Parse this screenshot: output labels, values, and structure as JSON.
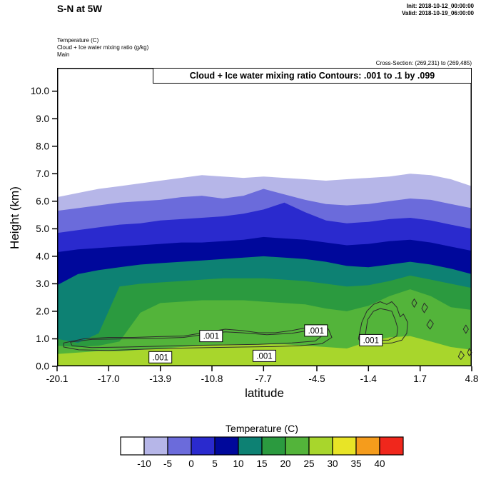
{
  "header": {
    "title": "S-N at 5W",
    "init": "Init: 2018-10-12_00:00:00",
    "valid": "Valid: 2018-10-19_06:00:00",
    "fields": [
      "Temperature  (C)",
      "Cloud + Ice water mixing ratio   (g/kg)",
      "Main"
    ],
    "cross_section": "Cross-Section: (269,231) to (269,485)"
  },
  "chart_data": {
    "type": "area",
    "subtype": "filled_contour_cross_section",
    "title": "Cloud + Ice water mixing ratio Contours: .001 to .1 by .099",
    "xlabel": "latitude",
    "ylabel": "Height (km)",
    "fill_field": "Temperature (C)",
    "xlim": [
      -20.1,
      4.8
    ],
    "ylim": [
      0,
      10.85
    ],
    "background_fill": "#ffffff",
    "x_ticks": {
      "values": [
        -20.1,
        -17.0,
        -13.9,
        -10.8,
        -7.7,
        -4.5,
        -1.4,
        1.7,
        4.8
      ],
      "labels": [
        "-20.1",
        "-17.0",
        "-13.9",
        "-10.8",
        "-7.7",
        "-4.5",
        "-1.4",
        "1.7",
        "4.8"
      ]
    },
    "y_ticks": {
      "values": [
        0,
        1,
        2,
        3,
        4,
        5,
        6,
        7,
        8,
        9,
        10
      ],
      "labels": [
        "0.0",
        "1.0",
        "2.0",
        "3.0",
        "4.0",
        "5.0",
        "6.0",
        "7.0",
        "8.0",
        "9.0",
        "10.0"
      ]
    },
    "x_samples": [
      -20.1,
      -18.85,
      -17.6,
      -16.35,
      -15.1,
      -13.9,
      -12.65,
      -11.4,
      -10.15,
      -8.9,
      -7.7,
      -6.45,
      -5.2,
      -3.95,
      -2.7,
      -1.4,
      -0.15,
      1.1,
      2.35,
      3.55,
      4.8
    ],
    "temp_bands": [
      {
        "label": "-10 to -5",
        "color": "#b6b6e8",
        "top_km": [
          6.15,
          6.3,
          6.45,
          6.55,
          6.65,
          6.75,
          6.85,
          6.95,
          6.9,
          6.85,
          6.9,
          6.85,
          6.8,
          6.75,
          6.8,
          6.85,
          6.9,
          7.0,
          6.95,
          6.8,
          6.55
        ]
      },
      {
        "label": "-5 to 0",
        "color": "#6b6bdb",
        "top_km": [
          5.65,
          5.75,
          5.85,
          5.95,
          6.0,
          6.05,
          6.15,
          6.2,
          6.1,
          6.2,
          6.45,
          6.25,
          6.05,
          5.9,
          5.85,
          5.9,
          6.0,
          6.1,
          6.05,
          5.9,
          5.75
        ]
      },
      {
        "label": "0 to 5",
        "color": "#2a2ace",
        "top_km": [
          4.85,
          4.95,
          5.05,
          5.15,
          5.2,
          5.3,
          5.35,
          5.4,
          5.45,
          5.55,
          5.7,
          5.95,
          5.6,
          5.3,
          5.2,
          5.25,
          5.35,
          5.4,
          5.3,
          5.15,
          5.0
        ]
      },
      {
        "label": "5 to 10",
        "color": "#00089b",
        "top_km": [
          4.15,
          4.25,
          4.3,
          4.35,
          4.4,
          4.45,
          4.5,
          4.5,
          4.55,
          4.6,
          4.7,
          4.65,
          4.6,
          4.5,
          4.4,
          4.45,
          4.55,
          4.6,
          4.5,
          4.35,
          4.2
        ]
      },
      {
        "label": "10 to 15",
        "color": "#0d8173",
        "top_km": [
          2.95,
          3.35,
          3.5,
          3.6,
          3.7,
          3.75,
          3.8,
          3.85,
          3.9,
          3.95,
          4.0,
          3.95,
          3.9,
          3.8,
          3.65,
          3.6,
          3.7,
          3.8,
          3.7,
          3.55,
          3.35
        ]
      },
      {
        "label": "15 to 20",
        "color": "#2b9a3f",
        "top_km": [
          1.0,
          0.85,
          1.2,
          2.9,
          3.0,
          3.05,
          3.1,
          3.15,
          3.2,
          3.2,
          3.2,
          3.15,
          3.1,
          3.0,
          2.9,
          2.95,
          3.1,
          3.3,
          3.15,
          3.0,
          2.85
        ]
      },
      {
        "label": "20 to 25",
        "color": "#53b43a",
        "top_km": [
          0.75,
          0.7,
          0.75,
          0.9,
          1.95,
          2.3,
          2.35,
          2.4,
          2.4,
          2.4,
          2.35,
          2.3,
          2.25,
          2.1,
          2.0,
          2.2,
          2.55,
          2.8,
          2.55,
          2.15,
          2.05
        ]
      },
      {
        "label": "25 to 30",
        "color": "#a8d62c",
        "top_km": [
          0.45,
          0.5,
          0.55,
          0.55,
          0.6,
          0.65,
          0.7,
          0.75,
          0.8,
          0.8,
          0.8,
          0.8,
          0.75,
          0.7,
          0.65,
          0.9,
          1.05,
          1.1,
          0.9,
          0.7,
          0.6
        ]
      }
    ],
    "cloud_contours": {
      "values": [
        0.001,
        0.1
      ],
      "color": "#2b2b2b",
      "polylines": [
        {
          "closed": true,
          "points": [
            [
              -19.7,
              0.85
            ],
            [
              -18.5,
              1.0
            ],
            [
              -17,
              1.05
            ],
            [
              -15.5,
              1.05
            ],
            [
              -14,
              1.08
            ],
            [
              -12.5,
              1.1
            ],
            [
              -11,
              1.25
            ],
            [
              -10,
              1.35
            ],
            [
              -9,
              1.3
            ],
            [
              -8,
              1.22
            ],
            [
              -7,
              1.22
            ],
            [
              -6,
              1.3
            ],
            [
              -5,
              1.42
            ],
            [
              -4.3,
              1.5
            ],
            [
              -3.8,
              1.35
            ],
            [
              -3.6,
              1.05
            ],
            [
              -4.2,
              0.82
            ],
            [
              -5.5,
              0.75
            ],
            [
              -7,
              0.72
            ],
            [
              -9,
              0.7
            ],
            [
              -11,
              0.68
            ],
            [
              -13,
              0.66
            ],
            [
              -15,
              0.62
            ],
            [
              -17,
              0.58
            ],
            [
              -18.8,
              0.6
            ],
            [
              -19.7,
              0.7
            ]
          ]
        },
        {
          "closed": true,
          "points": [
            [
              -19.3,
              0.88
            ],
            [
              -18,
              0.98
            ],
            [
              -16,
              1.0
            ],
            [
              -14,
              1.02
            ],
            [
              -12.5,
              1.05
            ],
            [
              -11,
              1.18
            ],
            [
              -10,
              1.25
            ],
            [
              -9,
              1.22
            ],
            [
              -7.5,
              1.15
            ],
            [
              -6,
              1.2
            ],
            [
              -5,
              1.3
            ],
            [
              -4.4,
              1.35
            ],
            [
              -4.1,
              1.15
            ],
            [
              -4.6,
              0.92
            ],
            [
              -6,
              0.85
            ],
            [
              -8,
              0.8
            ],
            [
              -10,
              0.78
            ],
            [
              -12,
              0.76
            ],
            [
              -14,
              0.73
            ],
            [
              -16,
              0.7
            ],
            [
              -18,
              0.68
            ],
            [
              -19.2,
              0.75
            ]
          ]
        },
        {
          "closed": true,
          "points": [
            [
              -2.0,
              1.0
            ],
            [
              -1.8,
              1.6
            ],
            [
              -1.5,
              2.0
            ],
            [
              -1.1,
              2.25
            ],
            [
              -0.7,
              2.35
            ],
            [
              -0.3,
              2.25
            ],
            [
              0.0,
              2.35
            ],
            [
              0.3,
              2.15
            ],
            [
              0.5,
              1.8
            ],
            [
              0.7,
              1.9
            ],
            [
              0.95,
              1.6
            ],
            [
              0.9,
              1.2
            ],
            [
              0.6,
              0.95
            ],
            [
              0.0,
              0.85
            ],
            [
              -0.8,
              0.82
            ],
            [
              -1.5,
              0.85
            ],
            [
              -1.9,
              0.9
            ]
          ]
        },
        {
          "closed": true,
          "points": [
            [
              -1.6,
              1.1
            ],
            [
              -1.45,
              1.7
            ],
            [
              -1.1,
              2.0
            ],
            [
              -0.7,
              2.1
            ],
            [
              -0.3,
              2.05
            ],
            [
              0.0,
              2.0
            ],
            [
              0.2,
              1.7
            ],
            [
              0.35,
              1.4
            ],
            [
              0.3,
              1.1
            ],
            [
              -0.2,
              0.95
            ],
            [
              -0.9,
              0.95
            ],
            [
              -1.4,
              0.98
            ]
          ]
        },
        {
          "closed": true,
          "points": [
            [
              1.2,
              2.3
            ],
            [
              1.35,
              2.45
            ],
            [
              1.5,
              2.3
            ],
            [
              1.35,
              2.15
            ]
          ]
        },
        {
          "closed": true,
          "points": [
            [
              1.8,
              2.1
            ],
            [
              1.95,
              2.3
            ],
            [
              2.15,
              2.15
            ],
            [
              1.95,
              1.95
            ]
          ]
        },
        {
          "closed": true,
          "points": [
            [
              2.1,
              1.5
            ],
            [
              2.3,
              1.7
            ],
            [
              2.5,
              1.55
            ],
            [
              2.3,
              1.35
            ]
          ]
        },
        {
          "closed": true,
          "points": [
            [
              4.3,
              1.35
            ],
            [
              4.45,
              1.5
            ],
            [
              4.6,
              1.35
            ],
            [
              4.45,
              1.2
            ]
          ]
        },
        {
          "closed": true,
          "points": [
            [
              4.0,
              0.35
            ],
            [
              4.15,
              0.55
            ],
            [
              4.35,
              0.4
            ],
            [
              4.15,
              0.25
            ]
          ]
        },
        {
          "closed": true,
          "points": [
            [
              4.55,
              0.5
            ],
            [
              4.65,
              0.65
            ],
            [
              4.8,
              0.5
            ],
            [
              4.65,
              0.38
            ]
          ]
        }
      ],
      "labels": [
        {
          "text": ".001",
          "x": -13.9,
          "y": 0.33
        },
        {
          "text": ".001",
          "x": -10.85,
          "y": 1.1
        },
        {
          "text": ".001",
          "x": -7.65,
          "y": 0.38
        },
        {
          "text": ".001",
          "x": -4.55,
          "y": 1.3
        },
        {
          "text": ".001",
          "x": -1.25,
          "y": 0.95
        }
      ]
    },
    "colorbar": {
      "title": "Temperature  (C)",
      "colors": [
        "#ffffff",
        "#b6b6e8",
        "#6b6bdb",
        "#2a2ace",
        "#00089b",
        "#0d8173",
        "#2b9a3f",
        "#53b43a",
        "#a8d62c",
        "#e8e426",
        "#f59c1c",
        "#f0271c"
      ],
      "labels": [
        "-10",
        "-5",
        "0",
        "5",
        "10",
        "15",
        "20",
        "25",
        "30",
        "35",
        "40"
      ]
    }
  }
}
